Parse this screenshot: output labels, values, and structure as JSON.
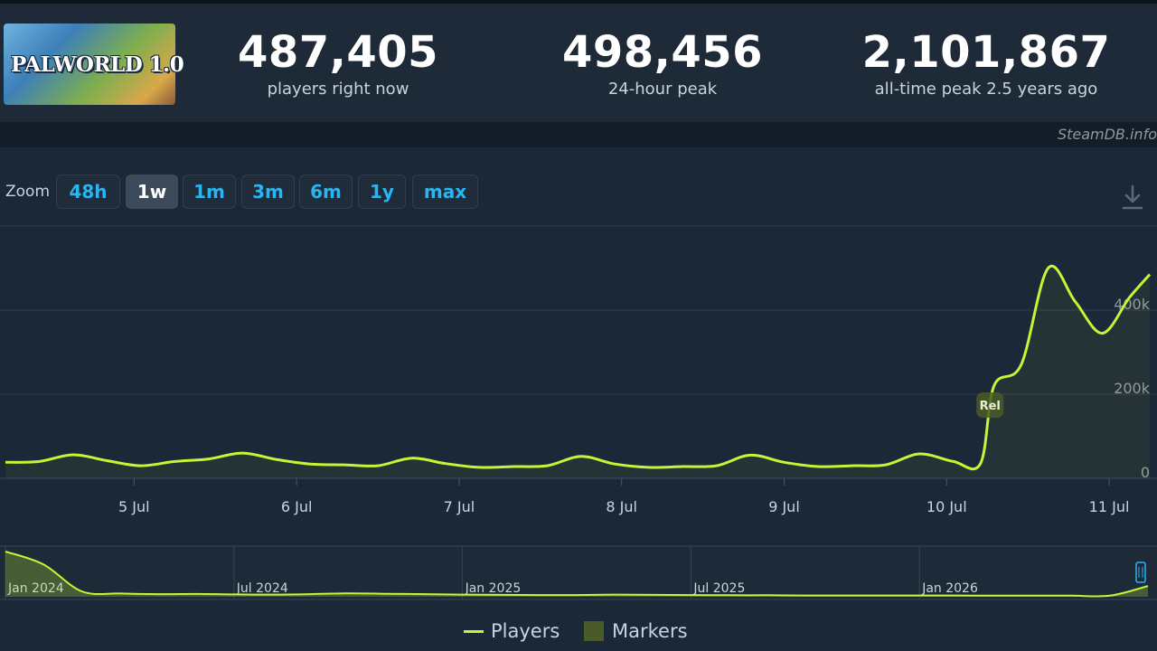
{
  "header": {
    "game_logo_text": "PALWORLD 1.0",
    "stats": [
      {
        "value": "487,405",
        "label": "players right now"
      },
      {
        "value": "498,456",
        "label": "24-hour peak"
      },
      {
        "value": "2,101,867",
        "label": "all-time peak 2.5 years ago"
      }
    ]
  },
  "credit": "SteamDB.info",
  "zoom": {
    "label": "Zoom",
    "options": [
      "48h",
      "1w",
      "1m",
      "3m",
      "6m",
      "1y",
      "max"
    ],
    "active": "1w"
  },
  "icons": {
    "download": "download-icon"
  },
  "colors": {
    "series": "#c5f536",
    "marker": "#4a5a28",
    "accent": "#2ab5f0"
  },
  "legend": {
    "players": "Players",
    "markers": "Markers"
  },
  "chart_data": [
    {
      "type": "line",
      "x_type": "datetime",
      "xlabel": "",
      "ylabel": "",
      "x_ticks": [
        "5 Jul",
        "6 Jul",
        "7 Jul",
        "8 Jul",
        "9 Jul",
        "10 Jul",
        "11 Jul"
      ],
      "y_ticks": [
        "0",
        "200k",
        "400k"
      ],
      "ylim": [
        0,
        600000
      ],
      "grid": true,
      "markers": [
        {
          "x": "2026-07-10 06:00",
          "label": "Rel"
        }
      ],
      "series": [
        {
          "name": "Players",
          "x": [
            "2026-07-04 05:00",
            "2026-07-04 10:00",
            "2026-07-04 15:00",
            "2026-07-04 20:00",
            "2026-07-05 01:00",
            "2026-07-05 06:00",
            "2026-07-05 11:00",
            "2026-07-05 16:00",
            "2026-07-05 21:00",
            "2026-07-06 02:00",
            "2026-07-06 07:00",
            "2026-07-06 12:00",
            "2026-07-06 17:00",
            "2026-07-06 22:00",
            "2026-07-07 03:00",
            "2026-07-07 08:00",
            "2026-07-07 13:00",
            "2026-07-07 18:00",
            "2026-07-07 23:00",
            "2026-07-08 04:00",
            "2026-07-08 09:00",
            "2026-07-08 14:00",
            "2026-07-08 19:00",
            "2026-07-09 00:00",
            "2026-07-09 05:00",
            "2026-07-09 10:00",
            "2026-07-09 15:00",
            "2026-07-09 20:00",
            "2026-07-10 01:00",
            "2026-07-10 05:00",
            "2026-07-10 07:00",
            "2026-07-10 11:00",
            "2026-07-10 15:00",
            "2026-07-10 19:00",
            "2026-07-10 23:00",
            "2026-07-11 03:00",
            "2026-07-11 06:00"
          ],
          "values": [
            38000,
            40000,
            56000,
            42000,
            30000,
            40000,
            46000,
            60000,
            45000,
            34000,
            32000,
            30000,
            48000,
            35000,
            26000,
            28000,
            30000,
            52000,
            34000,
            26000,
            28000,
            30000,
            55000,
            38000,
            28000,
            30000,
            32000,
            58000,
            40000,
            35000,
            220000,
            270000,
            500000,
            420000,
            345000,
            430000,
            485000
          ]
        }
      ]
    },
    {
      "type": "area",
      "x_type": "datetime",
      "x_ticks": [
        "Jan 2024",
        "Jul 2024",
        "Jan 2025",
        "Jul 2025",
        "Jan 2026"
      ],
      "series": [
        {
          "name": "Players",
          "x": [
            "2024-01",
            "2024-02",
            "2024-03",
            "2024-04",
            "2024-05",
            "2024-06",
            "2024-07",
            "2024-08",
            "2024-09",
            "2024-10",
            "2024-11",
            "2024-12",
            "2025-01",
            "2025-02",
            "2025-03",
            "2025-04",
            "2025-05",
            "2025-06",
            "2025-07",
            "2025-08",
            "2025-09",
            "2025-10",
            "2025-11",
            "2025-12",
            "2026-01",
            "2026-02",
            "2026-03",
            "2026-04",
            "2026-05",
            "2026-06",
            "2026-07"
          ],
          "values": [
            2100000,
            1500000,
            250000,
            150000,
            120000,
            130000,
            110000,
            100000,
            120000,
            160000,
            140000,
            120000,
            100000,
            90000,
            80000,
            80000,
            100000,
            90000,
            80000,
            70000,
            70000,
            60000,
            60000,
            60000,
            60000,
            60000,
            50000,
            50000,
            50000,
            50000,
            500000
          ]
        }
      ]
    }
  ]
}
